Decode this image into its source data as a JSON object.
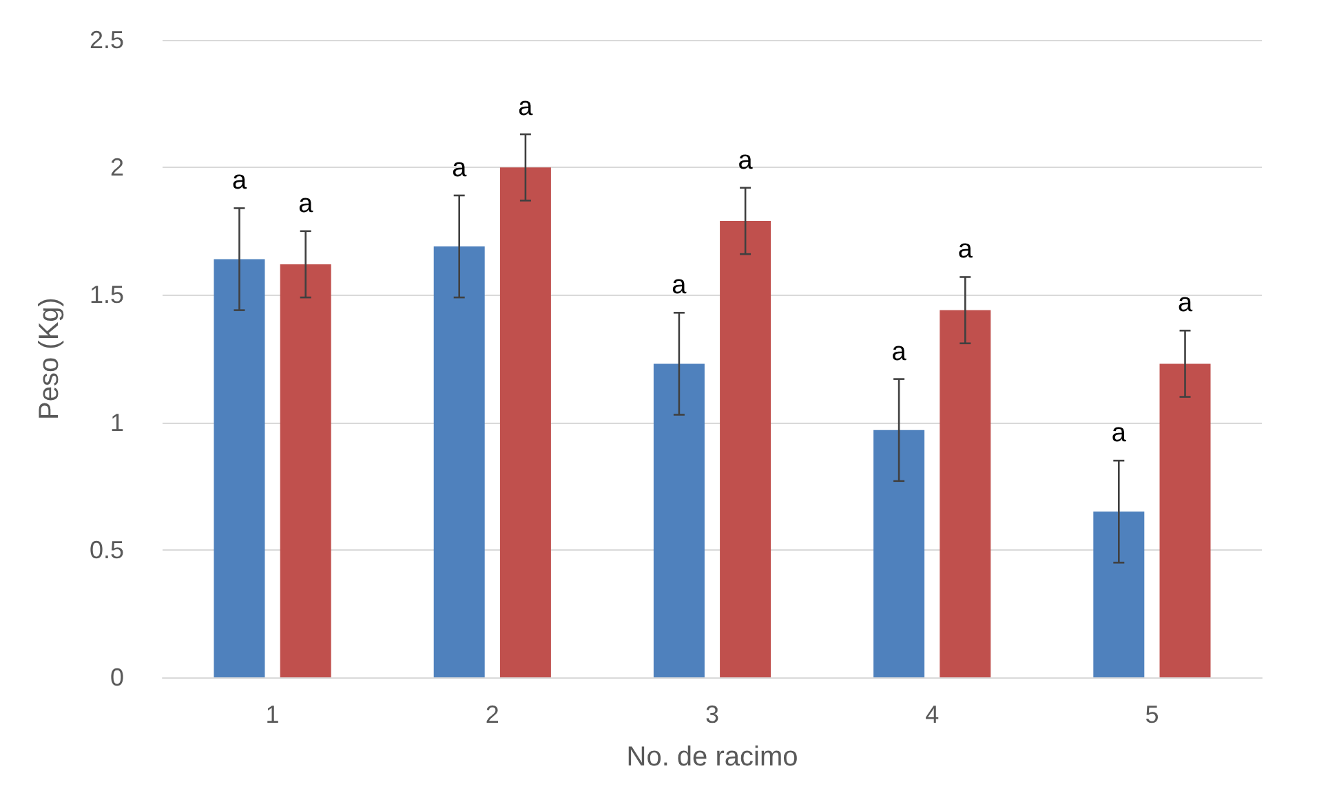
{
  "chart_data": {
    "type": "bar",
    "xlabel": "No. de racimo",
    "ylabel": "Peso (Kg)",
    "categories": [
      "1",
      "2",
      "3",
      "4",
      "5"
    ],
    "series": [
      {
        "color": "#4f81bd",
        "values": [
          1.64,
          1.69,
          1.23,
          0.97,
          0.65
        ],
        "errors": [
          0.2,
          0.2,
          0.2,
          0.2,
          0.2
        ],
        "value_labels": [
          "a",
          "a",
          "a",
          "a",
          "a"
        ]
      },
      {
        "color": "#c0504d",
        "values": [
          1.62,
          2.0,
          1.79,
          1.44,
          1.23
        ],
        "errors": [
          0.13,
          0.13,
          0.13,
          0.13,
          0.13
        ],
        "value_labels": [
          "a",
          "a",
          "a",
          "a",
          "a"
        ]
      }
    ],
    "ylim": [
      0,
      2.5
    ],
    "yticks": [
      0,
      0.5,
      1,
      1.5,
      2,
      2.5
    ],
    "grid": "y"
  }
}
